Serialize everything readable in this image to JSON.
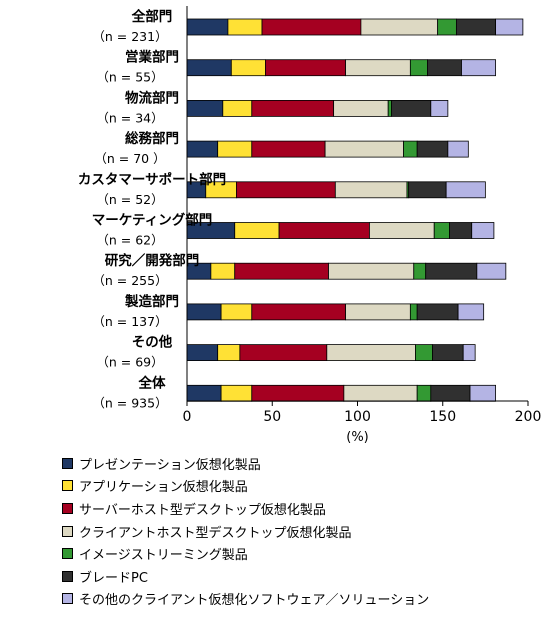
{
  "chart_data": {
    "type": "bar",
    "orientation": "horizontal",
    "stacked": true,
    "categories": [
      [
        "全部門",
        "（n = 231）"
      ],
      [
        "営業部門",
        "（n = 55）"
      ],
      [
        "物流部門",
        "（n = 34）"
      ],
      [
        "総務部門",
        "（n = 70 ）"
      ],
      [
        "カスタマーサポート部門",
        "（n = 52）"
      ],
      [
        "マーケティング部門",
        "（n = 62）"
      ],
      [
        "研究／開発部門",
        "（n = 255）"
      ],
      [
        "製造部門",
        "（n = 137）"
      ],
      [
        "その他",
        "（n = 69）"
      ],
      [
        "全体",
        "（n = 935）"
      ]
    ],
    "series": [
      {
        "name": "プレゼンテーション仮想化製品",
        "color": "#1f3864",
        "values": [
          24,
          26,
          21,
          18,
          11,
          28,
          14,
          20,
          18,
          20
        ]
      },
      {
        "name": "アプリケーション仮想化製品",
        "color": "#ffe135",
        "values": [
          20,
          20,
          17,
          20,
          18,
          26,
          14,
          18,
          13,
          18
        ]
      },
      {
        "name": "サーバーホスト型デスクトップ仮想化製品",
        "color": "#a50021",
        "values": [
          58,
          47,
          48,
          43,
          58,
          53,
          55,
          55,
          51,
          54
        ]
      },
      {
        "name": "クライアントホスト型デスクトップ仮想化製品",
        "color": "#ddd9c3",
        "values": [
          45,
          38,
          32,
          46,
          42,
          38,
          50,
          38,
          52,
          43
        ]
      },
      {
        "name": "イメージストリーミング製品",
        "color": "#339933",
        "values": [
          11,
          10,
          2,
          8,
          1,
          9,
          7,
          4,
          10,
          8
        ]
      },
      {
        "name": "ブレードPC",
        "color": "#303030",
        "values": [
          23,
          20,
          23,
          18,
          22,
          13,
          30,
          24,
          18,
          23
        ]
      },
      {
        "name": "その他のクライアント仮想化ソフトウェア／ソリューション",
        "color": "#b4b4e4",
        "values": [
          16,
          20,
          10,
          12,
          23,
          13,
          17,
          15,
          7,
          15
        ]
      }
    ],
    "xlim": [
      0,
      200
    ],
    "xticks": [
      "0",
      "50",
      "100",
      "150",
      "200"
    ],
    "xlabel": "(%)",
    "ylabel": "",
    "grid": false,
    "legend": "bottom"
  }
}
